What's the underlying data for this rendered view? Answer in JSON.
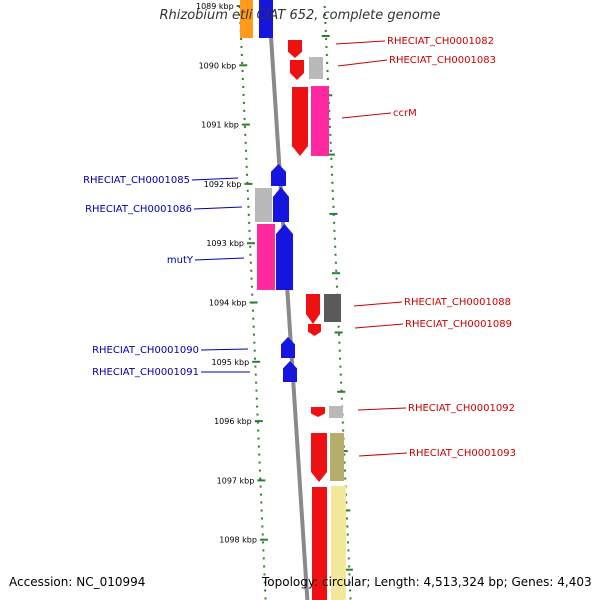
{
  "title": "Rhizobium etli CIAT 652, complete genome",
  "accession": "Accession: NC_010994",
  "topology": "Topology: circular; Length: 4,513,324 bp; Genes: 4,403",
  "colors": {
    "forward_gene": "#ee1111",
    "reverse_gene": "#1515dd",
    "label_forward": "#cc0000",
    "label_reverse": "#0000aa",
    "backbone": "#8a8a8a",
    "tick": "#2e7d2e",
    "gray": "#b9b9b9",
    "darkgray": "#5a5a5a",
    "pink": "#ff2aa0",
    "olive": "#b5ad6a",
    "lightyellow": "#f3e79a",
    "orange": "#ff9a1a"
  },
  "scale_labels": [
    "1089 kbp",
    "1090 kbp",
    "1091 kbp",
    "1092 kbp",
    "1093 kbp",
    "1094 kbp",
    "1095 kbp",
    "1096 kbp",
    "1097 kbp",
    "1098 kbp"
  ],
  "features_reverse_strand": [
    {
      "name": "RHECIAT_CH0001085",
      "color": "reverse_gene",
      "shape": "arrow-up"
    },
    {
      "name": "RHECIAT_CH0001086",
      "color": "reverse_gene",
      "shape": "arrow-up"
    },
    {
      "name": "RHECIAT_CH0001086",
      "color": "gray",
      "shape": "box"
    },
    {
      "name": "mutY",
      "color": "reverse_gene",
      "shape": "arrow-up"
    },
    {
      "name": "mutY",
      "color": "pink",
      "shape": "box"
    },
    {
      "name": "RHECIAT_CH0001090",
      "color": "reverse_gene",
      "shape": "arrow-up"
    },
    {
      "name": "RHECIAT_CH0001091",
      "color": "reverse_gene",
      "shape": "arrow-up"
    }
  ],
  "features_forward_strand": [
    {
      "name": "RHECIAT_CH0001082",
      "color": "forward_gene",
      "shape": "arrow-down"
    },
    {
      "name": "RHECIAT_CH0001083",
      "color": "forward_gene",
      "shape": "arrow-down"
    },
    {
      "name": "RHECIAT_CH0001083",
      "color": "gray",
      "shape": "box"
    },
    {
      "name": "ccrM",
      "color": "forward_gene",
      "shape": "arrow-down"
    },
    {
      "name": "ccrM",
      "color": "pink",
      "shape": "box"
    },
    {
      "name": "RHECIAT_CH0001088",
      "color": "forward_gene",
      "shape": "arrow-down"
    },
    {
      "name": "RHECIAT_CH0001088",
      "color": "darkgray",
      "shape": "box"
    },
    {
      "name": "RHECIAT_CH0001089",
      "color": "forward_gene",
      "shape": "arrow-down"
    },
    {
      "name": "RHECIAT_CH0001092",
      "color": "forward_gene",
      "shape": "arrow-down"
    },
    {
      "name": "RHECIAT_CH0001092",
      "color": "gray",
      "shape": "box"
    },
    {
      "name": "RHECIAT_CH0001093",
      "color": "forward_gene",
      "shape": "arrow-down"
    },
    {
      "name": "RHECIAT_CH0001093",
      "color": "olive",
      "shape": "box"
    }
  ],
  "labels_right": [
    "RHECIAT_CH0001082",
    "RHECIAT_CH0001083",
    "ccrM",
    "RHECIAT_CH0001088",
    "RHECIAT_CH0001089",
    "RHECIAT_CH0001092",
    "RHECIAT_CH0001093"
  ],
  "labels_left": [
    "RHECIAT_CH0001085",
    "RHECIAT_CH0001086",
    "mutY",
    "RHECIAT_CH0001090",
    "RHECIAT_CH0001091"
  ]
}
